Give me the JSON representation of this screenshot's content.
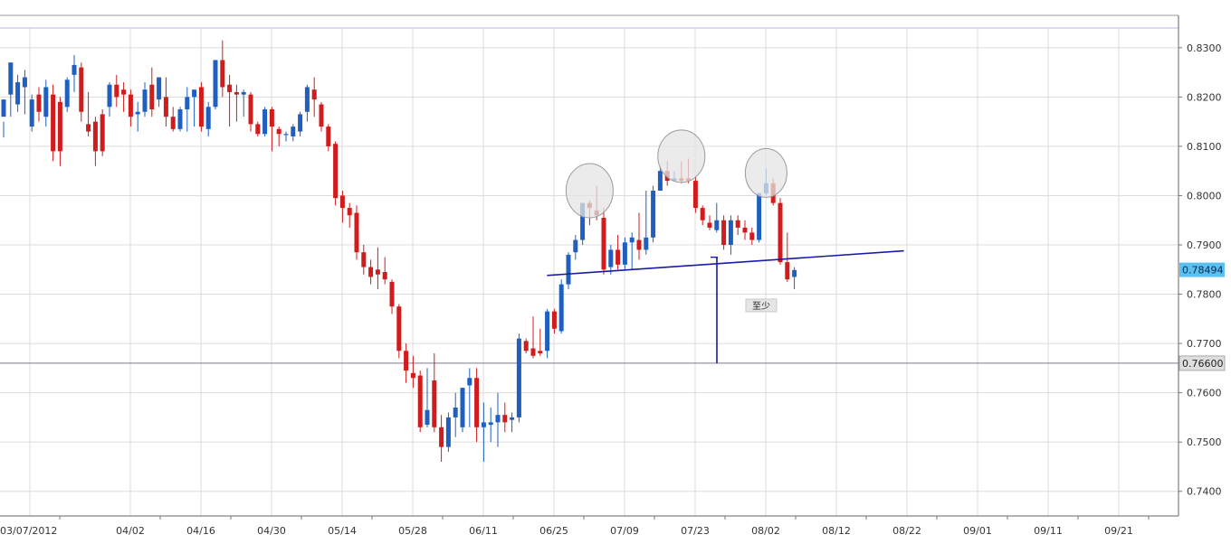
{
  "chart_data": {
    "type": "candlestick",
    "ylim": [
      0.735,
      0.834
    ],
    "grid": true,
    "x_ticks": [
      "03/07/2012",
      "04/02",
      "04/16",
      "04/30",
      "05/14",
      "05/28",
      "06/11",
      "06/25",
      "07/09",
      "07/23",
      "08/02",
      "08/12",
      "08/22",
      "09/01",
      "09/11",
      "09/21"
    ],
    "y_ticks": [
      "0.8300",
      "0.8200",
      "0.8100",
      "0.8000",
      "0.7900",
      "0.7800",
      "0.7700",
      "0.7600",
      "0.7500",
      "0.7400"
    ],
    "y_tick_values": [
      0.83,
      0.82,
      0.81,
      0.8,
      0.79,
      0.78,
      0.77,
      0.76,
      0.75,
      0.74
    ],
    "current_price": {
      "value": 0.78494,
      "label": "0.78494",
      "color": "#5bc0f0"
    },
    "target_line": {
      "value": 0.766,
      "label": "0.76600"
    },
    "target_annotation": "至少",
    "neckline": {
      "start_index": 78,
      "start_value": 0.7838,
      "end_index": 127,
      "end_value": 0.7888
    },
    "head_shoulders_circles": [
      {
        "index": 83,
        "value": 0.801
      },
      {
        "index": 96,
        "value": 0.808
      },
      {
        "index": 108,
        "value": 0.8046
      }
    ],
    "colors": {
      "up": "#1f5fbf",
      "down": "#d01c1c",
      "neckline": "#1a1aa8",
      "target_drop": "#1a1aa8"
    },
    "candles": [
      [
        0.816,
        0.8195,
        0.815,
        0.8118
      ],
      [
        0.8205,
        0.827,
        0.822,
        0.816
      ],
      [
        0.8185,
        0.823,
        0.8245,
        0.817
      ],
      [
        0.822,
        0.824,
        0.8255,
        0.8165
      ],
      [
        0.814,
        0.8195,
        0.8205,
        0.813
      ],
      [
        0.8205,
        0.817,
        0.822,
        0.815
      ],
      [
        0.816,
        0.822,
        0.8235,
        0.814
      ],
      [
        0.8205,
        0.809,
        0.8225,
        0.807
      ],
      [
        0.819,
        0.809,
        0.82,
        0.806
      ],
      [
        0.818,
        0.8235,
        0.824,
        0.817
      ],
      [
        0.8245,
        0.8265,
        0.8285,
        0.821
      ],
      [
        0.826,
        0.817,
        0.827,
        0.815
      ],
      [
        0.8145,
        0.813,
        0.821,
        0.812
      ],
      [
        0.815,
        0.809,
        0.816,
        0.806
      ],
      [
        0.8165,
        0.809,
        0.8175,
        0.808
      ],
      [
        0.818,
        0.8225,
        0.823,
        0.816
      ],
      [
        0.8225,
        0.82,
        0.8245,
        0.818
      ],
      [
        0.8215,
        0.8205,
        0.823,
        0.817
      ],
      [
        0.8205,
        0.816,
        0.8215,
        0.814
      ],
      [
        0.8165,
        0.817,
        0.819,
        0.813
      ],
      [
        0.817,
        0.8215,
        0.823,
        0.816
      ],
      [
        0.8225,
        0.8175,
        0.826,
        0.816
      ],
      [
        0.8195,
        0.824,
        0.824,
        0.818
      ],
      [
        0.82,
        0.816,
        0.824,
        0.814
      ],
      [
        0.816,
        0.8135,
        0.818,
        0.813
      ],
      [
        0.8135,
        0.8175,
        0.818,
        0.813
      ],
      [
        0.8175,
        0.82,
        0.822,
        0.813
      ],
      [
        0.82,
        0.8215,
        0.8215,
        0.814
      ],
      [
        0.822,
        0.814,
        0.823,
        0.813
      ],
      [
        0.8135,
        0.818,
        0.819,
        0.812
      ],
      [
        0.818,
        0.8275,
        0.8275,
        0.8175
      ],
      [
        0.8275,
        0.822,
        0.8315,
        0.82
      ],
      [
        0.8225,
        0.821,
        0.8245,
        0.814
      ],
      [
        0.821,
        0.8205,
        0.8225,
        0.815
      ],
      [
        0.8205,
        0.821,
        0.8215,
        0.816
      ],
      [
        0.8205,
        0.8145,
        0.821,
        0.813
      ],
      [
        0.8145,
        0.8125,
        0.815,
        0.812
      ],
      [
        0.8125,
        0.8175,
        0.818,
        0.812
      ],
      [
        0.8175,
        0.814,
        0.818,
        0.809
      ],
      [
        0.8135,
        0.8125,
        0.814,
        0.81
      ],
      [
        0.8125,
        0.8125,
        0.813,
        0.811
      ],
      [
        0.812,
        0.814,
        0.8145,
        0.811
      ],
      [
        0.813,
        0.8165,
        0.817,
        0.812
      ],
      [
        0.817,
        0.822,
        0.8225,
        0.815
      ],
      [
        0.8215,
        0.8195,
        0.824,
        0.816
      ],
      [
        0.8185,
        0.814,
        0.819,
        0.813
      ],
      [
        0.814,
        0.81,
        0.8145,
        0.809
      ],
      [
        0.8105,
        0.7995,
        0.811,
        0.798
      ],
      [
        0.8,
        0.7975,
        0.801,
        0.7945
      ],
      [
        0.7975,
        0.796,
        0.7985,
        0.7935
      ],
      [
        0.7965,
        0.7885,
        0.798,
        0.787
      ],
      [
        0.7885,
        0.7855,
        0.79,
        0.784
      ],
      [
        0.7855,
        0.7835,
        0.787,
        0.782
      ],
      [
        0.785,
        0.784,
        0.7895,
        0.781
      ],
      [
        0.7845,
        0.783,
        0.7875,
        0.782
      ],
      [
        0.7825,
        0.7775,
        0.783,
        0.776
      ],
      [
        0.7775,
        0.7685,
        0.778,
        0.767
      ],
      [
        0.7685,
        0.7645,
        0.77,
        0.762
      ],
      [
        0.764,
        0.763,
        0.7675,
        0.761
      ],
      [
        0.7635,
        0.753,
        0.7645,
        0.752
      ],
      [
        0.7535,
        0.7565,
        0.765,
        0.753
      ],
      [
        0.7625,
        0.753,
        0.768,
        0.752
      ],
      [
        0.753,
        0.749,
        0.7555,
        0.746
      ],
      [
        0.749,
        0.755,
        0.756,
        0.748
      ],
      [
        0.755,
        0.757,
        0.76,
        0.751
      ],
      [
        0.753,
        0.761,
        0.761,
        0.752
      ],
      [
        0.7615,
        0.763,
        0.765,
        0.753
      ],
      [
        0.763,
        0.753,
        0.765,
        0.75
      ],
      [
        0.753,
        0.754,
        0.758,
        0.746
      ],
      [
        0.7535,
        0.754,
        0.757,
        0.75
      ],
      [
        0.754,
        0.7555,
        0.76,
        0.749
      ],
      [
        0.7555,
        0.754,
        0.758,
        0.752
      ],
      [
        0.7545,
        0.755,
        0.756,
        0.752
      ],
      [
        0.755,
        0.771,
        0.772,
        0.754
      ],
      [
        0.7705,
        0.7685,
        0.771,
        0.768
      ],
      [
        0.769,
        0.7675,
        0.7755,
        0.767
      ],
      [
        0.7685,
        0.768,
        0.773,
        0.7675
      ],
      [
        0.7685,
        0.7765,
        0.777,
        0.767
      ],
      [
        0.7765,
        0.773,
        0.777,
        0.772
      ],
      [
        0.7725,
        0.782,
        0.783,
        0.772
      ],
      [
        0.782,
        0.788,
        0.7885,
        0.781
      ],
      [
        0.7885,
        0.791,
        0.792,
        0.787
      ],
      [
        0.791,
        0.7985,
        0.7985,
        0.79
      ],
      [
        0.7985,
        0.7975,
        0.799,
        0.794
      ],
      [
        0.797,
        0.796,
        0.802,
        0.795
      ],
      [
        0.7955,
        0.785,
        0.7975,
        0.784
      ],
      [
        0.7855,
        0.789,
        0.79,
        0.784
      ],
      [
        0.789,
        0.786,
        0.792,
        0.785
      ],
      [
        0.786,
        0.7905,
        0.7915,
        0.785
      ],
      [
        0.7905,
        0.7915,
        0.7925,
        0.785
      ],
      [
        0.791,
        0.789,
        0.7965,
        0.787
      ],
      [
        0.789,
        0.7915,
        0.801,
        0.788
      ],
      [
        0.7915,
        0.801,
        0.802,
        0.7905
      ],
      [
        0.801,
        0.805,
        0.806,
        0.801
      ],
      [
        0.805,
        0.803,
        0.807,
        0.802
      ],
      [
        0.803,
        0.8035,
        0.805,
        0.803
      ],
      [
        0.8035,
        0.803,
        0.807,
        0.8025
      ],
      [
        0.8035,
        0.803,
        0.8075,
        0.8025
      ],
      [
        0.803,
        0.7975,
        0.804,
        0.7965
      ],
      [
        0.7975,
        0.795,
        0.798,
        0.794
      ],
      [
        0.7945,
        0.7935,
        0.796,
        0.793
      ],
      [
        0.793,
        0.795,
        0.7985,
        0.7925
      ],
      [
        0.795,
        0.79,
        0.796,
        0.789
      ],
      [
        0.79,
        0.795,
        0.796,
        0.788
      ],
      [
        0.795,
        0.7935,
        0.796,
        0.792
      ],
      [
        0.7935,
        0.7925,
        0.795,
        0.791
      ],
      [
        0.7925,
        0.791,
        0.7935,
        0.79
      ],
      [
        0.791,
        0.8005,
        0.8005,
        0.7905
      ],
      [
        0.8005,
        0.8025,
        0.8055,
        0.8
      ],
      [
        0.8025,
        0.7985,
        0.8035,
        0.798
      ],
      [
        0.7985,
        0.7865,
        0.7995,
        0.786
      ],
      [
        0.7865,
        0.783,
        0.7925,
        0.7825
      ],
      [
        0.7835,
        0.7849,
        0.7855,
        0.781
      ]
    ]
  }
}
